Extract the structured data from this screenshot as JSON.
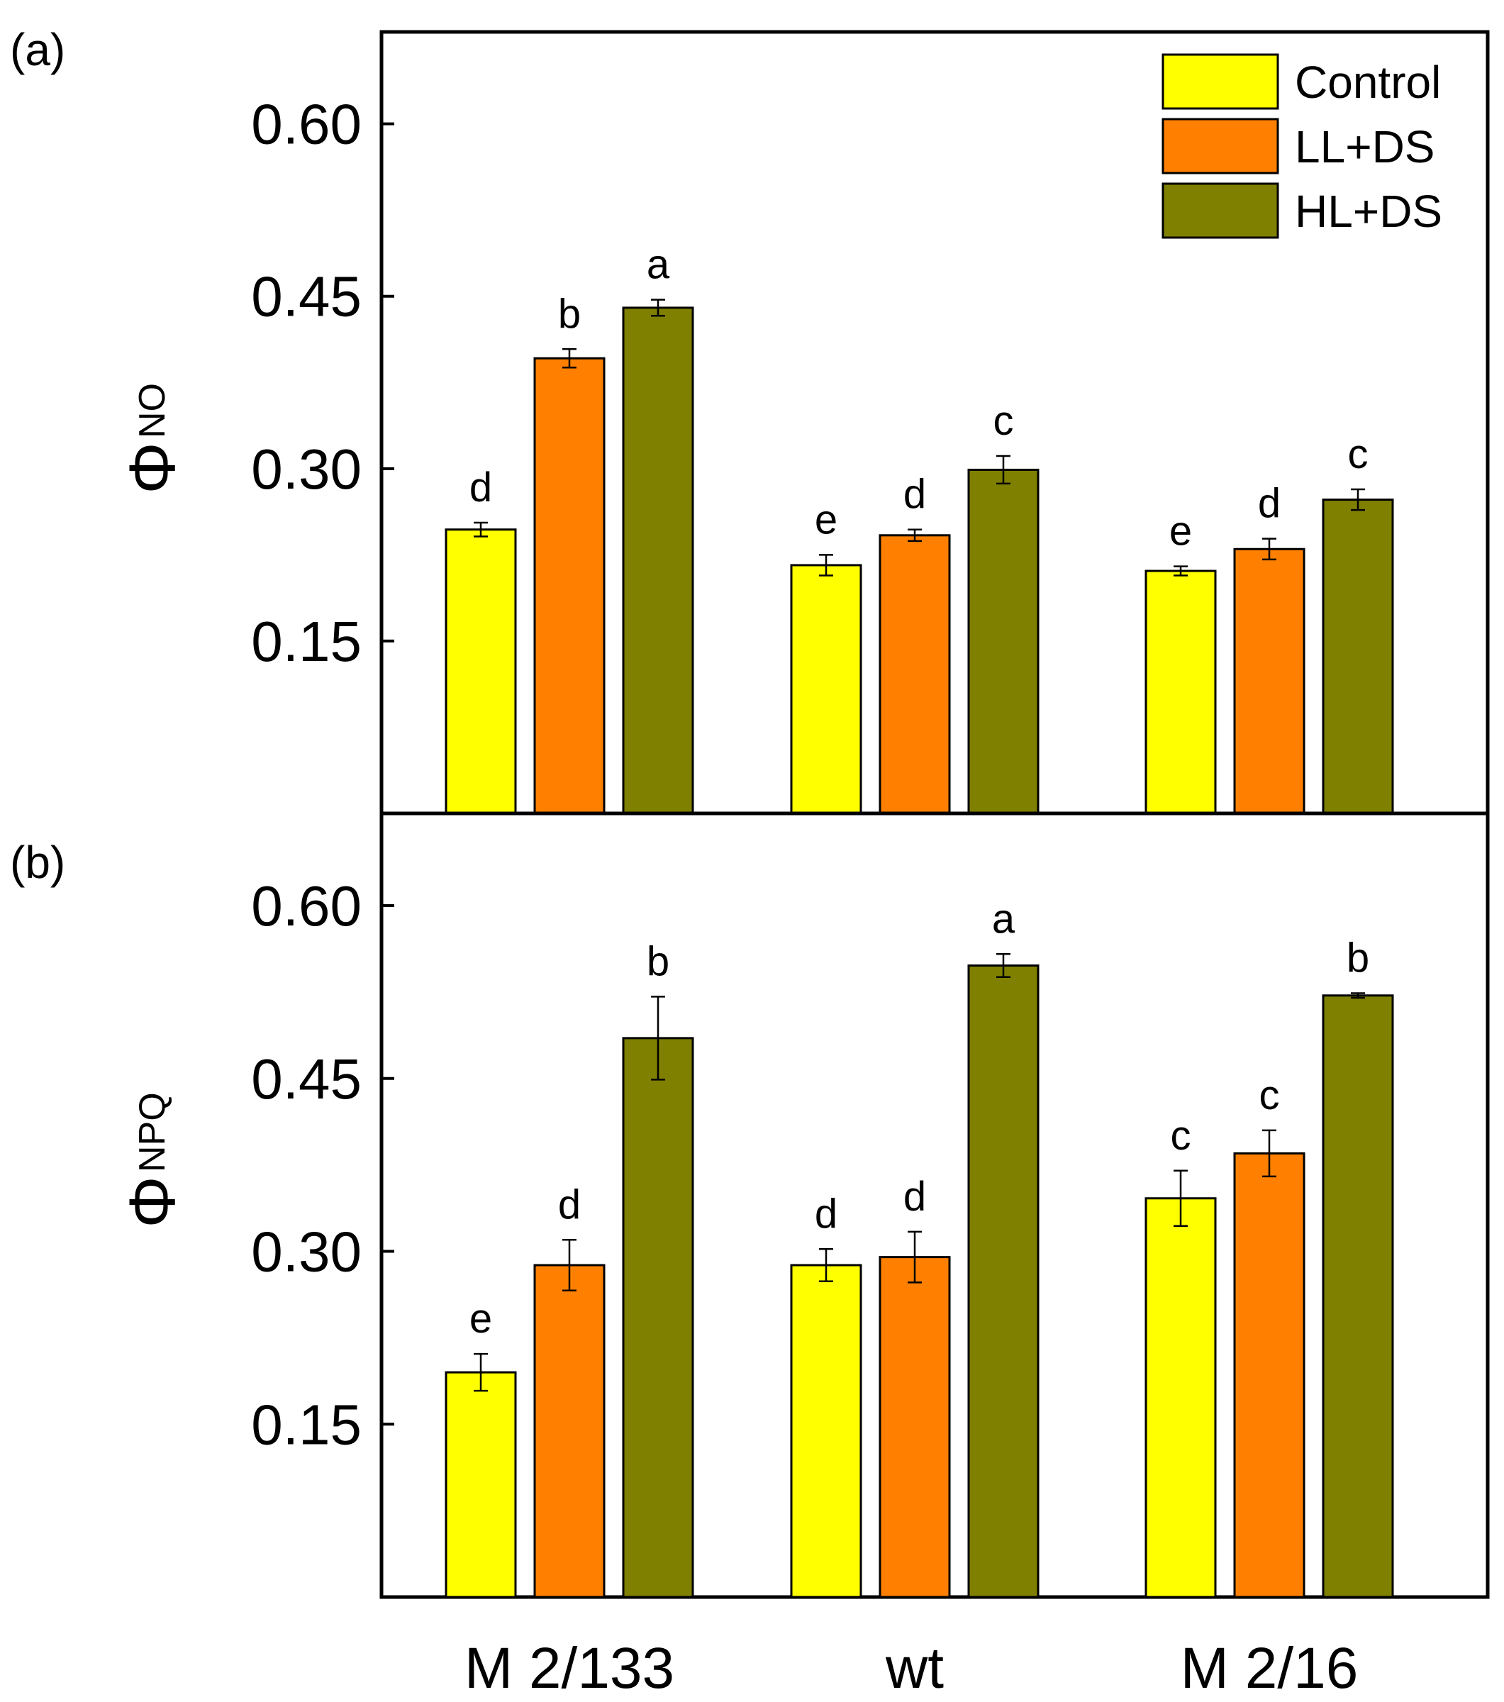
{
  "chart_data": [
    {
      "type": "bar",
      "panel_label": "(a)",
      "ylabel": "Φ",
      "ylabel_sub": "NO",
      "ylim": [
        0.0,
        0.68
      ],
      "yticks": [
        "0.15",
        "0.30",
        "0.45",
        "0.60"
      ],
      "categories": [
        "M 2/133",
        "wt",
        "M 2/16"
      ],
      "series": [
        {
          "name": "Control",
          "color": "#ffff00",
          "values": [
            0.247,
            0.216,
            0.211
          ],
          "errors": [
            0.006,
            0.009,
            0.004
          ],
          "letters": [
            "d",
            "e",
            "e"
          ]
        },
        {
          "name": "LL+DS",
          "color": "#ff8000",
          "values": [
            0.396,
            0.242,
            0.23
          ],
          "errors": [
            0.008,
            0.005,
            0.009
          ],
          "letters": [
            "b",
            "d",
            "d"
          ]
        },
        {
          "name": "HL+DS",
          "color": "#808000",
          "values": [
            0.44,
            0.299,
            0.273
          ],
          "errors": [
            0.007,
            0.012,
            0.009
          ],
          "letters": [
            "a",
            "c",
            "c"
          ]
        }
      ]
    },
    {
      "type": "bar",
      "panel_label": "(b)",
      "ylabel": "Φ",
      "ylabel_sub": "NPQ",
      "ylim": [
        0.0,
        0.68
      ],
      "yticks": [
        "0.15",
        "0.30",
        "0.45",
        "0.60"
      ],
      "categories": [
        "M 2/133",
        "wt",
        "M 2/16"
      ],
      "series": [
        {
          "name": "Control",
          "color": "#ffff00",
          "values": [
            0.195,
            0.288,
            0.346
          ],
          "errors": [
            0.016,
            0.014,
            0.024
          ],
          "letters": [
            "e",
            "d",
            "c"
          ]
        },
        {
          "name": "LL+DS",
          "color": "#ff8000",
          "values": [
            0.288,
            0.295,
            0.385
          ],
          "errors": [
            0.022,
            0.022,
            0.02
          ],
          "letters": [
            "d",
            "d",
            "c"
          ]
        },
        {
          "name": "HL+DS",
          "color": "#808000",
          "values": [
            0.485,
            0.548,
            0.522
          ],
          "errors": [
            0.036,
            0.01,
            0.002
          ],
          "letters": [
            "b",
            "a",
            "b"
          ]
        }
      ]
    }
  ],
  "legend": {
    "items": [
      {
        "label": "Control",
        "color": "#ffff00"
      },
      {
        "label": "LL+DS",
        "color": "#ff8000"
      },
      {
        "label": "HL+DS",
        "color": "#808000"
      }
    ],
    "placement": "top-right"
  }
}
